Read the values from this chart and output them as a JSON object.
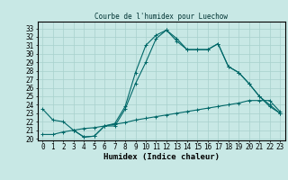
{
  "title": "Courbe de l'humidex pour Luechow",
  "xlabel": "Humidex (Indice chaleur)",
  "bg_color": "#c8e8e5",
  "plot_bg_color": "#c8e8e5",
  "line_color": "#006868",
  "grid_color": "#a8d0cc",
  "xlim": [
    -0.5,
    23.5
  ],
  "ylim": [
    19.8,
    33.8
  ],
  "xticks": [
    0,
    1,
    2,
    3,
    4,
    5,
    6,
    7,
    8,
    9,
    10,
    11,
    12,
    13,
    14,
    15,
    16,
    17,
    18,
    19,
    20,
    21,
    22,
    23
  ],
  "yticks": [
    20,
    21,
    22,
    23,
    24,
    25,
    26,
    27,
    28,
    29,
    30,
    31,
    32,
    33
  ],
  "line1_x": [
    0,
    1,
    2,
    3,
    4,
    5,
    6,
    7,
    8,
    9,
    10,
    11,
    12,
    13,
    14,
    15,
    16,
    17,
    18,
    19,
    20,
    21,
    22,
    23
  ],
  "line1_y": [
    23.5,
    22.2,
    22.0,
    21.0,
    20.2,
    20.3,
    21.5,
    21.8,
    23.8,
    27.8,
    31.0,
    32.2,
    32.8,
    31.5,
    30.5,
    30.5,
    30.5,
    31.2,
    28.5,
    27.8,
    26.5,
    25.0,
    23.8,
    23.0
  ],
  "line2_x": [
    3,
    4,
    5,
    6,
    7,
    8,
    9,
    10,
    11,
    12,
    13,
    14,
    15,
    16,
    17,
    18,
    19,
    20,
    21,
    22,
    23
  ],
  "line2_y": [
    21.0,
    20.2,
    20.3,
    21.5,
    21.5,
    23.5,
    26.5,
    29.0,
    31.8,
    32.8,
    31.8,
    30.5,
    30.5,
    30.5,
    31.2,
    28.5,
    27.8,
    26.5,
    25.0,
    24.0,
    23.0
  ],
  "line3_x": [
    0,
    1,
    2,
    3,
    4,
    5,
    6,
    7,
    8,
    9,
    10,
    11,
    12,
    13,
    14,
    15,
    16,
    17,
    18,
    19,
    20,
    21,
    22,
    23
  ],
  "line3_y": [
    20.5,
    20.5,
    20.8,
    21.0,
    21.2,
    21.3,
    21.5,
    21.7,
    21.9,
    22.2,
    22.4,
    22.6,
    22.8,
    23.0,
    23.2,
    23.4,
    23.6,
    23.8,
    24.0,
    24.2,
    24.5,
    24.5,
    24.5,
    23.2
  ],
  "title_fontsize": 5.5,
  "label_fontsize": 5.5,
  "xlabel_fontsize": 6.5
}
